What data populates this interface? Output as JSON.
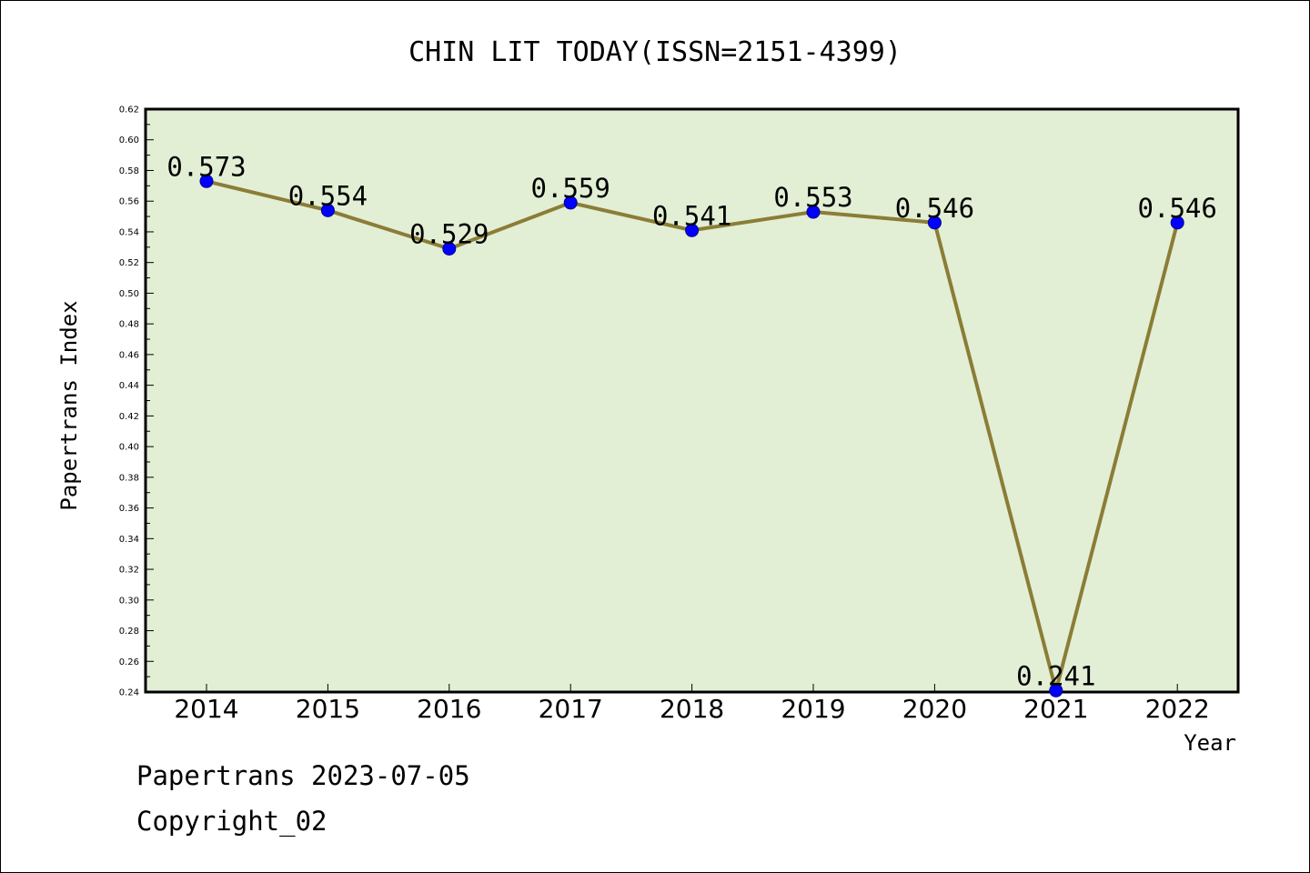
{
  "footer": {
    "source_date": "Papertrans 2023-07-05",
    "copyright": "Copyright_02"
  },
  "colors": {
    "plot_background": "#e2efd5",
    "line": "#8b7d36",
    "marker": "#0000ff",
    "marker_edge": "#00008b",
    "axis": "#000000"
  },
  "chart_data": {
    "type": "line",
    "title": "CHIN LIT TODAY(ISSN=2151-4399)",
    "xlabel": "Year",
    "ylabel": "Papertrans Index",
    "categories": [
      "2014",
      "2015",
      "2016",
      "2017",
      "2018",
      "2019",
      "2020",
      "2021",
      "2022"
    ],
    "series": [
      {
        "values": [
          0.573,
          0.554,
          0.529,
          0.559,
          0.541,
          0.553,
          0.546,
          0.241,
          0.546
        ],
        "data_labels": [
          "0.573",
          "0.554",
          "0.529",
          "0.559",
          "0.541",
          "0.553",
          "0.546",
          "0.241",
          "0.546"
        ]
      }
    ],
    "ylim": [
      0.24,
      0.62
    ],
    "yticks": [
      "0.24",
      "0.26",
      "0.28",
      "0.30",
      "0.32",
      "0.34",
      "0.36",
      "0.38",
      "0.40",
      "0.42",
      "0.44",
      "0.46",
      "0.48",
      "0.50",
      "0.52",
      "0.54",
      "0.56",
      "0.58",
      "0.60",
      "0.62"
    ],
    "grid": false,
    "legend": "none"
  }
}
